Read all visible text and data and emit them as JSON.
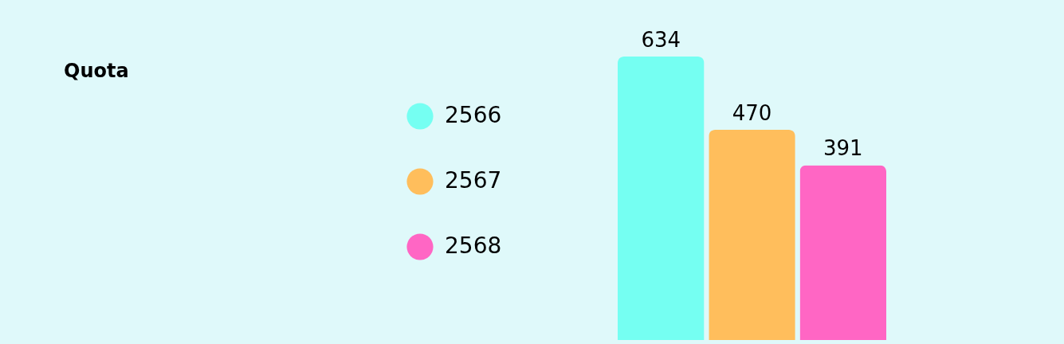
{
  "chart_data": {
    "type": "bar",
    "title": "Quota",
    "categories": [
      null
    ],
    "series": [
      {
        "name": "2566",
        "color": "#75fff2",
        "values": [
          634
        ]
      },
      {
        "name": "2567",
        "color": "#ffbe5c",
        "values": [
          470
        ]
      },
      {
        "name": "2568",
        "color": "#ff66c4",
        "values": [
          391
        ]
      }
    ],
    "data_labels": true,
    "legend": "left"
  }
}
